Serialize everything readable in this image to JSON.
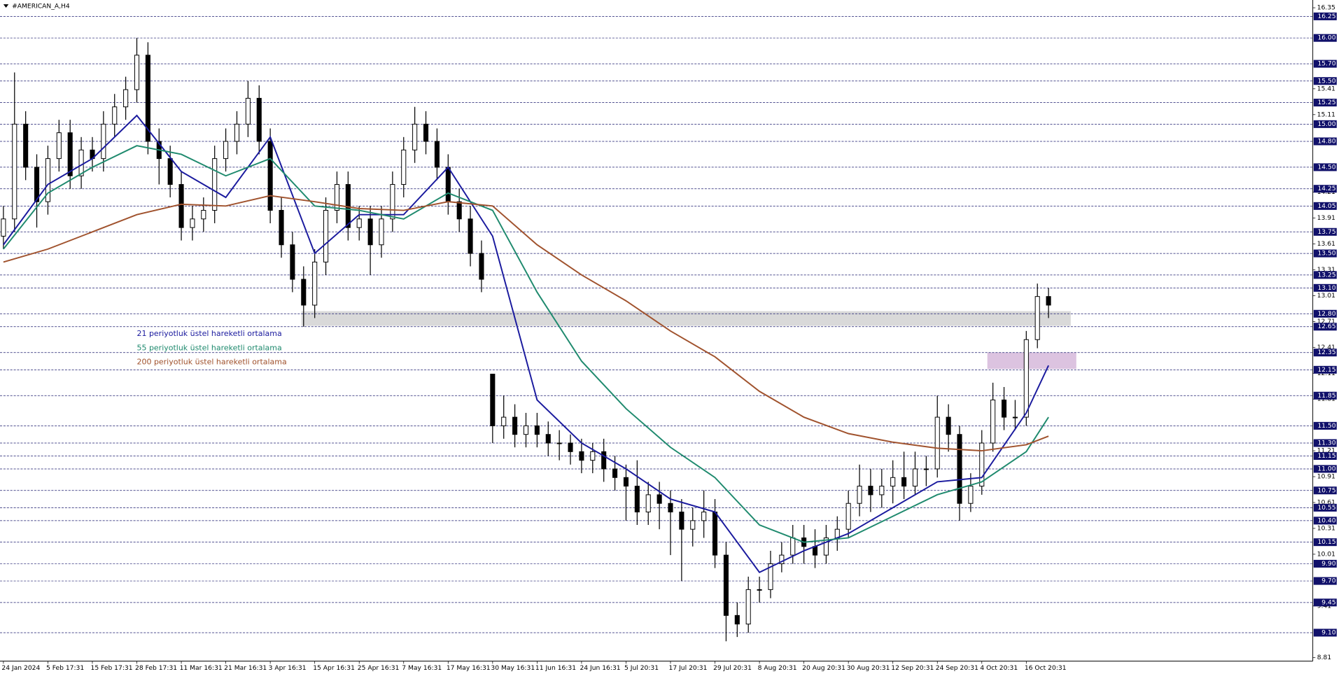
{
  "chart_data": {
    "type": "candlestick",
    "title": "#AMERICAN_A,H4",
    "categories": [
      "24 Jan 2024",
      null,
      null,
      null,
      "5 Feb 17:31",
      null,
      null,
      null,
      "15 Feb 17:31",
      null,
      null,
      null,
      "28 Feb 17:31",
      null,
      null,
      null,
      "11 Mar 16:31",
      null,
      null,
      null,
      "21 Mar 16:31",
      null,
      null,
      null,
      "3 Apr 16:31",
      null,
      null,
      null,
      "15 Apr 16:31",
      null,
      null,
      null,
      "25 Apr 16:31",
      null,
      null,
      null,
      "7 May 16:31",
      null,
      null,
      null,
      "17 May 16:31",
      null,
      null,
      null,
      "30 May 16:31",
      null,
      null,
      null,
      "11 Jun 16:31",
      null,
      null,
      null,
      "24 Jun 16:31",
      null,
      null,
      null,
      "5 Jul 20:31",
      null,
      null,
      null,
      "17 Jul 20:31",
      null,
      null,
      null,
      "29 Jul 20:31",
      null,
      null,
      null,
      "8 Aug 20:31",
      null,
      null,
      null,
      "20 Aug 20:31",
      null,
      null,
      null,
      "30 Aug 20:31",
      null,
      null,
      null,
      "12 Sep 20:31",
      null,
      null,
      null,
      "24 Sep 20:31",
      null,
      null,
      null,
      "4 Oct 20:31",
      null,
      null,
      null,
      "16 Oct 20:31",
      null,
      null
    ],
    "open": [
      13.7,
      13.9,
      15.0,
      14.5,
      14.1,
      14.6,
      14.9,
      14.4,
      14.7,
      14.6,
      15.0,
      15.2,
      15.4,
      15.8,
      14.8,
      14.6,
      14.3,
      13.8,
      13.9,
      14.0,
      14.6,
      14.8,
      15.0,
      15.3,
      14.8,
      14.0,
      13.6,
      13.2,
      12.9,
      13.4,
      14.0,
      14.3,
      13.8,
      13.9,
      13.6,
      13.9,
      14.3,
      14.7,
      15.0,
      14.8,
      14.5,
      14.1,
      13.9,
      13.5,
      12.1,
      11.5,
      11.6,
      11.4,
      11.5,
      11.4,
      11.3,
      11.3,
      11.2,
      11.1,
      11.2,
      11.0,
      10.9,
      10.8,
      10.5,
      10.7,
      10.6,
      10.5,
      10.3,
      10.4,
      10.5,
      10.0,
      9.3,
      9.2,
      9.6,
      9.6,
      9.9,
      10.0,
      10.2,
      10.1,
      10.0,
      10.2,
      10.3,
      10.6,
      10.8,
      10.7,
      10.8,
      10.9,
      10.8,
      11.0,
      11.0,
      11.6,
      11.4,
      10.6,
      10.8,
      11.3,
      11.8,
      11.6,
      11.6,
      12.5,
      13.0
    ],
    "high": [
      14.05,
      15.6,
      15.15,
      14.65,
      14.75,
      15.05,
      15.05,
      14.85,
      14.85,
      15.15,
      15.35,
      15.55,
      16.0,
      15.95,
      14.95,
      14.75,
      14.45,
      14.05,
      14.15,
      14.75,
      14.95,
      15.15,
      15.5,
      15.45,
      14.95,
      14.15,
      13.75,
      13.35,
      13.55,
      14.15,
      14.45,
      14.45,
      14.05,
      14.05,
      14.05,
      14.45,
      14.85,
      15.2,
      15.15,
      14.95,
      14.65,
      14.25,
      14.05,
      13.65,
      12.1,
      11.85,
      11.75,
      11.65,
      11.65,
      11.55,
      11.45,
      11.4,
      11.35,
      11.3,
      11.35,
      11.15,
      11.05,
      11.1,
      10.85,
      10.85,
      10.75,
      10.65,
      10.55,
      10.75,
      10.65,
      10.15,
      9.45,
      9.75,
      9.75,
      10.05,
      10.15,
      10.35,
      10.35,
      10.3,
      10.35,
      10.45,
      10.75,
      11.05,
      11.0,
      11.0,
      11.1,
      11.2,
      11.2,
      11.15,
      11.85,
      11.75,
      11.5,
      10.95,
      11.45,
      12.0,
      11.95,
      11.8,
      12.6,
      13.15,
      13.1
    ],
    "low": [
      13.55,
      13.75,
      14.35,
      13.8,
      13.95,
      14.45,
      14.25,
      14.25,
      14.45,
      14.45,
      14.85,
      15.05,
      15.25,
      14.65,
      14.3,
      14.15,
      13.65,
      13.65,
      13.75,
      13.85,
      14.45,
      14.65,
      14.85,
      14.65,
      13.85,
      13.45,
      13.05,
      12.65,
      12.75,
      13.25,
      13.85,
      13.65,
      13.65,
      13.25,
      13.45,
      13.75,
      14.15,
      14.55,
      14.65,
      14.35,
      13.95,
      13.75,
      13.35,
      13.05,
      11.3,
      11.35,
      11.25,
      11.25,
      11.25,
      11.15,
      11.1,
      11.05,
      10.95,
      10.95,
      10.85,
      10.75,
      10.4,
      10.35,
      10.35,
      10.3,
      10.0,
      9.7,
      10.1,
      10.2,
      9.85,
      9.0,
      9.05,
      9.1,
      9.45,
      9.5,
      9.8,
      9.9,
      9.9,
      9.85,
      9.9,
      10.05,
      10.2,
      10.45,
      10.5,
      10.55,
      10.6,
      10.65,
      10.7,
      10.8,
      10.9,
      11.2,
      10.4,
      10.5,
      10.7,
      11.2,
      11.45,
      11.45,
      11.5,
      12.4,
      12.75
    ],
    "close": [
      13.9,
      15.0,
      14.5,
      14.1,
      14.6,
      14.9,
      14.4,
      14.7,
      14.6,
      15.0,
      15.2,
      15.4,
      15.8,
      14.8,
      14.6,
      14.3,
      13.8,
      13.9,
      14.0,
      14.6,
      14.8,
      15.0,
      15.3,
      14.8,
      14.0,
      13.6,
      13.2,
      12.9,
      13.4,
      14.0,
      14.3,
      13.8,
      13.9,
      13.6,
      13.9,
      14.3,
      14.7,
      15.0,
      14.8,
      14.5,
      14.1,
      13.9,
      13.5,
      13.2,
      11.5,
      11.6,
      11.4,
      11.5,
      11.4,
      11.3,
      11.3,
      11.2,
      11.1,
      11.2,
      11.0,
      10.9,
      10.8,
      10.5,
      10.7,
      10.6,
      10.5,
      10.3,
      10.4,
      10.5,
      10.0,
      9.3,
      9.2,
      9.6,
      9.6,
      9.9,
      10.0,
      10.2,
      10.1,
      10.0,
      10.2,
      10.3,
      10.6,
      10.8,
      10.7,
      10.8,
      10.9,
      10.8,
      11.0,
      11.0,
      11.6,
      11.4,
      10.6,
      10.8,
      11.3,
      11.8,
      11.6,
      11.6,
      12.5,
      13.0,
      12.9
    ],
    "series": [
      {
        "name": "21 periyotluk üstel hareketli ortalama",
        "color": "#1a1a9e",
        "x": [
          0,
          4,
          8,
          12,
          16,
          20,
          24,
          28,
          32,
          36,
          40,
          44,
          48,
          52,
          56,
          60,
          64,
          68,
          72,
          76,
          80,
          84,
          88,
          92,
          94
        ],
        "values": [
          13.6,
          14.3,
          14.6,
          15.1,
          14.45,
          14.15,
          14.85,
          13.5,
          13.95,
          13.95,
          14.5,
          13.7,
          11.8,
          11.3,
          11.0,
          10.65,
          10.5,
          9.8,
          10.05,
          10.25,
          10.55,
          10.85,
          10.9,
          11.65,
          12.2
        ]
      },
      {
        "name": "55 periyotluk üstel hareketli ortalama",
        "color": "#1f8a6e",
        "x": [
          0,
          4,
          8,
          12,
          16,
          20,
          24,
          28,
          32,
          36,
          40,
          44,
          48,
          52,
          56,
          60,
          64,
          68,
          72,
          76,
          80,
          84,
          88,
          92,
          94
        ],
        "values": [
          13.55,
          14.2,
          14.5,
          14.75,
          14.65,
          14.4,
          14.6,
          14.05,
          14.0,
          13.9,
          14.2,
          14.0,
          13.05,
          12.25,
          11.7,
          11.25,
          10.9,
          10.35,
          10.15,
          10.2,
          10.45,
          10.7,
          10.85,
          11.2,
          11.6
        ]
      },
      {
        "name": "200 periyotluk üstel hareketli ortalama",
        "color": "#a0522d",
        "x": [
          0,
          4,
          8,
          12,
          16,
          20,
          24,
          28,
          32,
          36,
          40,
          44,
          48,
          52,
          56,
          60,
          64,
          68,
          72,
          76,
          80,
          84,
          88,
          92,
          94
        ],
        "values": [
          13.4,
          13.55,
          13.75,
          13.95,
          14.07,
          14.05,
          14.17,
          14.1,
          14.02,
          14.0,
          14.1,
          14.05,
          13.6,
          13.25,
          12.95,
          12.6,
          12.3,
          11.9,
          11.6,
          11.41,
          11.31,
          11.24,
          11.21,
          11.28,
          11.38
        ]
      }
    ],
    "ylim": [
      8.77,
      16.44
    ],
    "yticks": [
      16.35,
      15.41,
      15.11,
      14.21,
      13.91,
      13.61,
      13.31,
      13.01,
      12.71,
      12.41,
      12.11,
      11.81,
      11.21,
      10.91,
      10.61,
      10.31,
      10.01,
      9.41,
      8.81
    ],
    "levels": [
      16.25,
      {
        "value": 16,
        "label": "16.00"
      },
      {
        "value": 15.7,
        "label": "15.70"
      },
      {
        "value": 15.5,
        "label": "15.50"
      },
      15.25,
      {
        "value": 15,
        "label": "15.00"
      },
      {
        "value": 14.8,
        "label": "14.80"
      },
      {
        "value": 14.5,
        "label": "14.50"
      },
      14.25,
      14.05,
      13.75,
      {
        "value": 13.5,
        "label": "13.50"
      },
      13.25,
      {
        "value": 13.1,
        "label": "13.10"
      },
      {
        "value": 12.8,
        "label": "12.80"
      },
      12.65,
      12.35,
      12.15,
      11.85,
      {
        "value": 11.5,
        "label": "11.50"
      },
      {
        "value": 11.3,
        "label": "11.30"
      },
      11.15,
      {
        "value": 11,
        "label": "11.00"
      },
      10.75,
      10.55,
      {
        "value": 10.4,
        "label": "10.40"
      },
      10.15,
      {
        "value": 9.9,
        "label": "9.90"
      },
      {
        "value": 9.7,
        "label": "9.70"
      },
      9.45,
      {
        "value": 9.1,
        "label": "9.10"
      }
    ],
    "zones": [
      {
        "x": [
          26.8,
          96
        ],
        "y": [
          12.66,
          12.83
        ],
        "color": "#d9d9d9"
      },
      {
        "x": [
          88.5,
          96.5
        ],
        "y": [
          12.16,
          12.35
        ],
        "color": "#dcc3e0"
      }
    ]
  }
}
